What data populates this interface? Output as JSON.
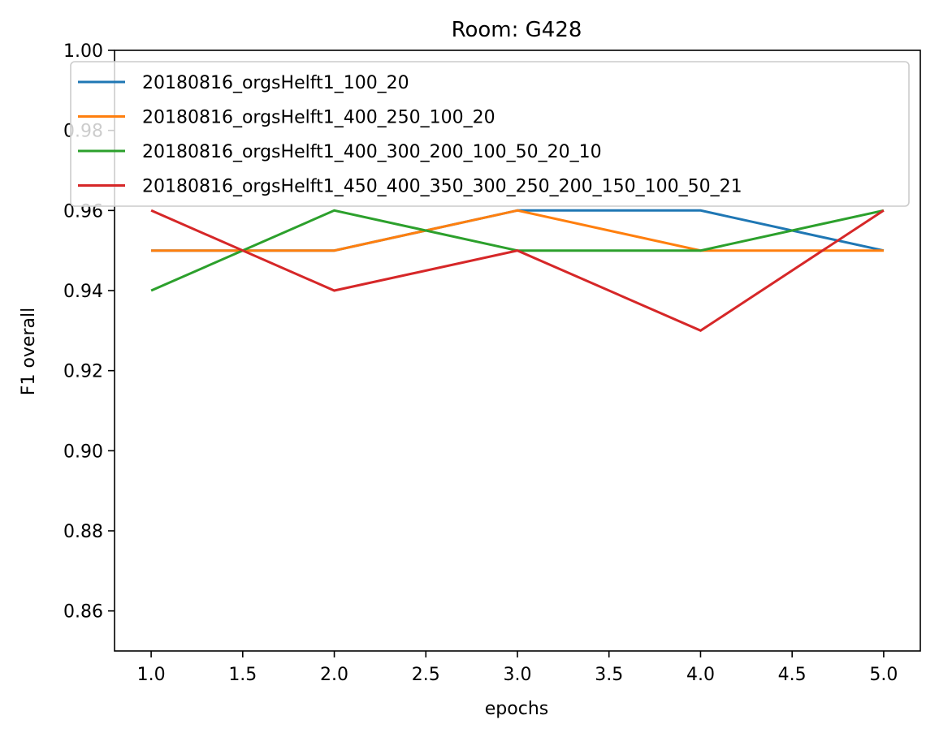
{
  "chart_data": {
    "type": "line",
    "title": "Room: G428",
    "xlabel": "epochs",
    "ylabel": "F1 overall",
    "xlim": [
      0.8,
      5.2
    ],
    "ylim": [
      0.85,
      1.0
    ],
    "xticks": [
      1.0,
      1.5,
      2.0,
      2.5,
      3.0,
      3.5,
      4.0,
      4.5,
      5.0
    ],
    "xtick_labels": [
      "1.0",
      "1.5",
      "2.0",
      "2.5",
      "3.0",
      "3.5",
      "4.0",
      "4.5",
      "5.0"
    ],
    "yticks": [
      0.86,
      0.88,
      0.9,
      0.92,
      0.94,
      0.96,
      0.98,
      1.0
    ],
    "ytick_labels": [
      "0.86",
      "0.88",
      "0.90",
      "0.92",
      "0.94",
      "0.96",
      "0.98",
      "1.00"
    ],
    "grid": false,
    "legend_position": "top",
    "x": [
      1,
      2,
      3,
      4,
      5
    ],
    "series": [
      {
        "name": "20180816_orgsHelft1_100_20",
        "color": "#1f77b4",
        "values": [
          0.95,
          0.95,
          0.96,
          0.96,
          0.95
        ]
      },
      {
        "name": "20180816_orgsHelft1_400_250_100_20",
        "color": "#ff7f0e",
        "values": [
          0.95,
          0.95,
          0.96,
          0.95,
          0.95
        ]
      },
      {
        "name": "20180816_orgsHelft1_400_300_200_100_50_20_10",
        "color": "#2ca02c",
        "values": [
          0.94,
          0.96,
          0.95,
          0.95,
          0.96
        ]
      },
      {
        "name": "20180816_orgsHelft1_450_400_350_300_250_200_150_100_50_21",
        "color": "#d62728",
        "values": [
          0.96,
          0.94,
          0.95,
          0.93,
          0.96
        ]
      }
    ]
  }
}
